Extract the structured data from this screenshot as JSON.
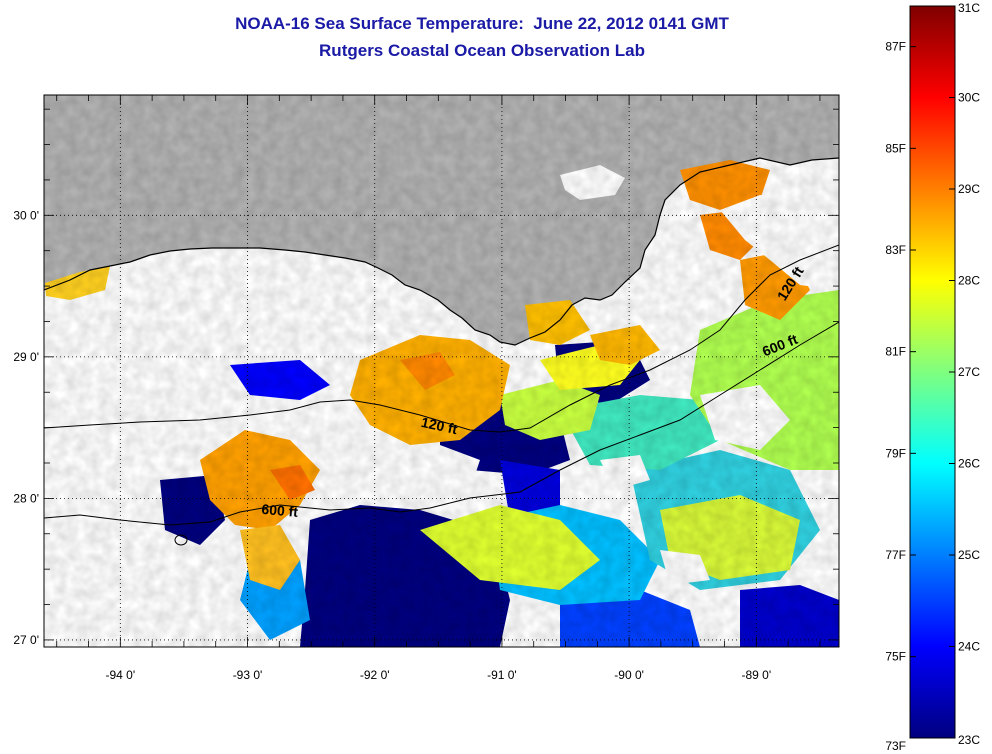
{
  "title_line1": "NOAA-16 Sea Surface Temperature:  June 22, 2012 0141 GMT",
  "title_line2": "Rutgers Coastal Ocean Observation Lab",
  "map": {
    "lon_range": [
      -94.6,
      -88.35
    ],
    "lat_range": [
      26.95,
      30.85
    ],
    "lon_ticks": [
      {
        "value": -94,
        "label": "-94 0'"
      },
      {
        "value": -93,
        "label": "-93 0'"
      },
      {
        "value": -92,
        "label": "-92 0'"
      },
      {
        "value": -91,
        "label": "-91 0'"
      },
      {
        "value": -90,
        "label": "-90 0'"
      },
      {
        "value": -89,
        "label": "-89 0'"
      }
    ],
    "lat_ticks": [
      {
        "value": 30,
        "label": "30 0'"
      },
      {
        "value": 29,
        "label": "29 0'"
      },
      {
        "value": 28,
        "label": "28 0'"
      },
      {
        "value": 27,
        "label": "27 0'"
      }
    ],
    "grid": "dotted",
    "land_color": "#b2b2b2",
    "cloud_color": "#ffffff",
    "contour_labels": [
      {
        "text": "120 ft",
        "lon": -91.5,
        "lat": 28.48,
        "rotate": 12
      },
      {
        "text": "600 ft",
        "lon": -92.75,
        "lat": 27.88,
        "rotate": 5
      },
      {
        "text": "600 ft",
        "lon": -88.8,
        "lat": 29.05,
        "rotate": -22
      },
      {
        "text": "120 ft",
        "lon": -88.7,
        "lat": 29.5,
        "rotate": -58
      }
    ]
  },
  "colorbar": {
    "colors": [
      "#00007f",
      "#0000ff",
      "#007fff",
      "#00ffff",
      "#7fff7f",
      "#ffff00",
      "#ff7f00",
      "#ff0000",
      "#7f0000"
    ],
    "celsius_ticks": [
      "31C",
      "30C",
      "29C",
      "28C",
      "27C",
      "26C",
      "25C",
      "24C",
      "23C"
    ],
    "fahrenheit_ticks": [
      "87F",
      "85F",
      "83F",
      "81F",
      "79F",
      "77F",
      "75F",
      "73F"
    ],
    "celsius_range": [
      23,
      31
    ]
  }
}
